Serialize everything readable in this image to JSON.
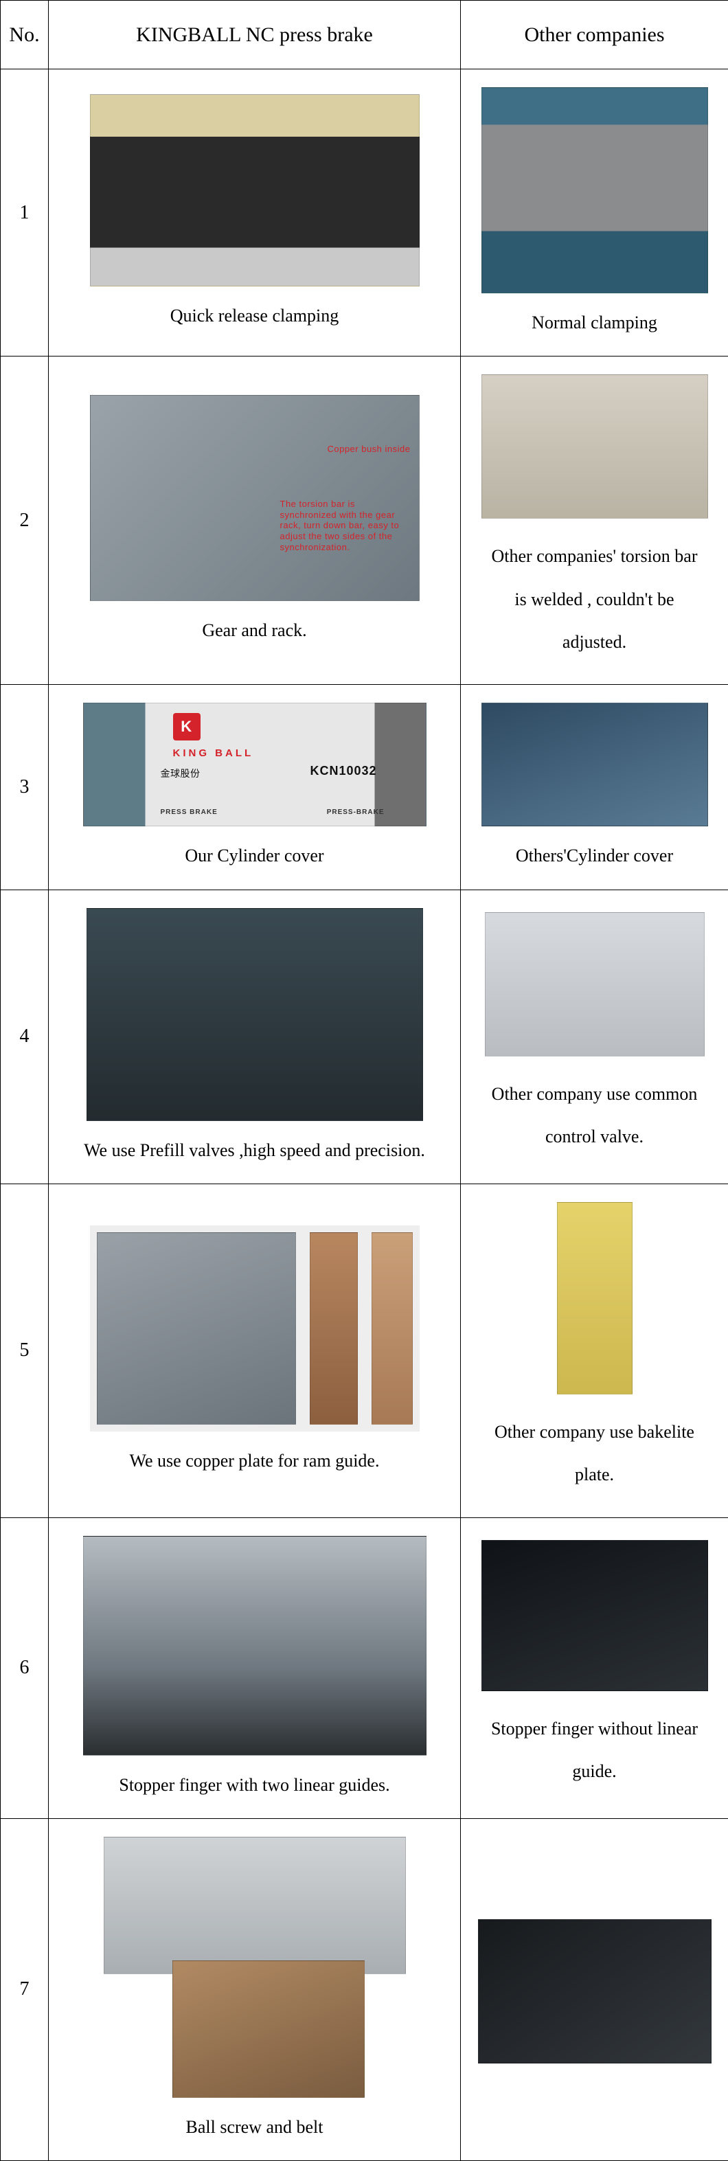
{
  "headers": {
    "no": "No.",
    "kingball": "KINGBALL NC press brake",
    "others": "Other companies"
  },
  "rows": [
    {
      "no": "1",
      "kingball_caption": "Quick release clamping",
      "others_caption": "Normal clamping"
    },
    {
      "no": "2",
      "kingball_caption": "Gear and rack.",
      "annot1": "Copper bush inside",
      "annot2": "The torsion bar is synchronized with the gear rack, turn down bar, easy to adjust the two sides of the synchronization.",
      "others_caption": "Other companies' torsion bar is welded , couldn't be adjusted."
    },
    {
      "no": "3",
      "kingball_caption": "Our Cylinder cover",
      "logo_letter": "K",
      "logo_text": "KING BALL",
      "logo_cn": "金球股份",
      "model": "KCN10032",
      "badge_left": "PRESS BRAKE",
      "badge_right": "PRESS-BRAKE",
      "others_caption": "Others'Cylinder cover"
    },
    {
      "no": "4",
      "kingball_caption": "We use Prefill valves ,high speed and precision.",
      "others_caption": "Other company use common control valve."
    },
    {
      "no": "5",
      "kingball_caption": "We use copper plate for ram guide.",
      "others_caption": "Other company use bakelite plate."
    },
    {
      "no": "6",
      "kingball_caption": "Stopper finger with two linear guides.",
      "others_caption": "Stopper finger without linear guide."
    },
    {
      "no": "7",
      "kingball_caption": "Ball screw and belt",
      "others_caption": ""
    }
  ],
  "colors": {
    "border": "#000000",
    "accent_red": "#d4232a",
    "background": "#ffffff"
  }
}
